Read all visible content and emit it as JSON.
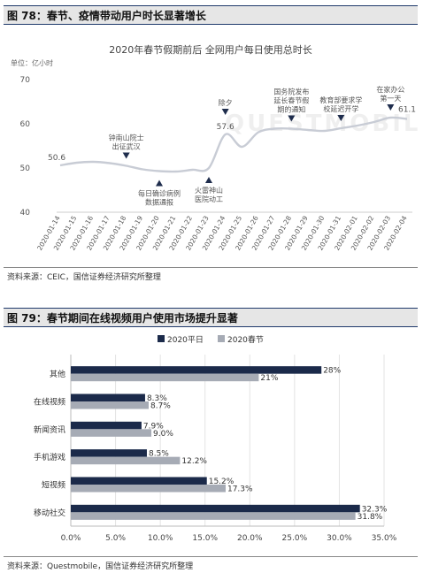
{
  "fig1": {
    "header": "图 78：春节、疫情带动用户时长显著增长",
    "source": "资料来源：CEIC，国信证券经济研究所整理",
    "watermark": "QUESTMOBILE"
  },
  "fig2": {
    "header": "图 79：春节期间在线视频用户使用市场提升显著",
    "source": "资料来源：Questmobile，国信证券经济研究所整理"
  },
  "chart_data": [
    {
      "type": "line",
      "title": "2020年春节假期前后 全网用户每日使用总时长",
      "ylabel": "单位：亿小时",
      "ylim": [
        40,
        70
      ],
      "yticks": [
        40,
        50,
        60,
        70
      ],
      "grid": false,
      "categories": [
        "2020-01-14",
        "2020-01-15",
        "2020-01-16",
        "2020-01-17",
        "2020-01-18",
        "2020-01-19",
        "2020-01-20",
        "2020-01-21",
        "2020-01-22",
        "2020-01-23",
        "2020-01-24",
        "2020-01-25",
        "2020-01-26",
        "2020-01-27",
        "2020-01-28",
        "2020-01-29",
        "2020-01-30",
        "2020-01-31",
        "2020-02-01",
        "2020-02-02",
        "2020-02-03",
        "2020-02-04"
      ],
      "series": [
        {
          "values": [
            50.6,
            51.2,
            51.4,
            51.1,
            50.5,
            49.7,
            49.3,
            49.2,
            49.6,
            50.0,
            57.6,
            54.8,
            58.1,
            58.9,
            58.9,
            58.6,
            58.4,
            59.0,
            59.6,
            60.4,
            61.4,
            61.1
          ]
        }
      ],
      "value_labels": [
        {
          "index": 0,
          "text": "50.6"
        },
        {
          "index": 10,
          "text": "57.6"
        },
        {
          "index": 21,
          "text": "61.1"
        }
      ],
      "annotations": [
        {
          "index": 4,
          "text": [
            "钟南山院士",
            "出征武汉"
          ],
          "marker": "down"
        },
        {
          "index": 6,
          "text": [
            "每日确诊病例",
            "数据通报"
          ],
          "marker": "up"
        },
        {
          "index": 9,
          "text": [
            "火雷神山",
            "医院动工"
          ],
          "marker": "up"
        },
        {
          "index": 10,
          "text": [
            "除夕"
          ],
          "marker": "down"
        },
        {
          "index": 14,
          "text": [
            "国务院发布",
            "延长春节假",
            "期的通知"
          ],
          "marker": "down"
        },
        {
          "index": 17,
          "text": [
            "教育部要求学",
            "校延迟开学"
          ],
          "marker": "down"
        },
        {
          "index": 20,
          "text": [
            "在家办公",
            "第一天"
          ],
          "marker": "down"
        }
      ],
      "colors": {
        "line": "#c8ccd5",
        "marker": "#1f2d4d",
        "text": "#555555"
      }
    },
    {
      "type": "bar",
      "orientation": "horizontal",
      "categories": [
        "其他",
        "在线视频",
        "新闻资讯",
        "手机游戏",
        "短视频",
        "移动社交"
      ],
      "series": [
        {
          "name": "2020平日",
          "values": [
            28,
            8.3,
            7.9,
            8.5,
            15.2,
            32.3
          ],
          "labels": [
            "28%",
            "8.3%",
            "7.9%",
            "8.5%",
            "15.2%",
            "32.3%"
          ]
        },
        {
          "name": "2020春节",
          "values": [
            21,
            8.7,
            9.0,
            12.2,
            17.3,
            31.8
          ],
          "labels": [
            "21%",
            "8.7%",
            "9.0%",
            "12.2%",
            "17.3%",
            "31.8%"
          ]
        }
      ],
      "xlim": [
        0,
        35
      ],
      "xticks": [
        "0.0%",
        "5.0%",
        "10.0%",
        "15.0%",
        "20.0%",
        "25.0%",
        "30.0%",
        "35.0%"
      ],
      "legend": "top-center",
      "colors": {
        "series1": "#1b2a4a",
        "series2": "#a6abb5"
      }
    }
  ]
}
